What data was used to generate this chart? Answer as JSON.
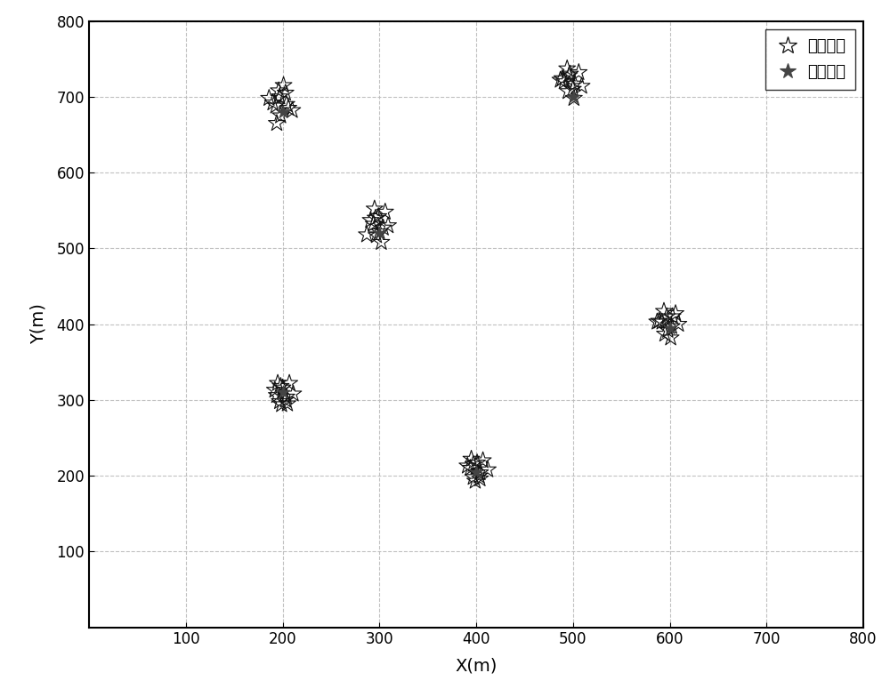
{
  "title": "",
  "xlabel": "X(m)",
  "ylabel": "Y(m)",
  "xlim": [
    0,
    800
  ],
  "ylim": [
    0,
    800
  ],
  "xticks": [
    100,
    200,
    300,
    400,
    500,
    600,
    700,
    800
  ],
  "yticks": [
    100,
    200,
    300,
    400,
    500,
    600,
    700,
    800
  ],
  "true_positions": [
    [
      200,
      680
    ],
    [
      200,
      310
    ],
    [
      300,
      520
    ],
    [
      400,
      205
    ],
    [
      500,
      700
    ],
    [
      600,
      395
    ]
  ],
  "estimated_clusters": [
    [
      [
        193,
        688
      ],
      [
        197,
        700
      ],
      [
        203,
        705
      ],
      [
        198,
        675
      ],
      [
        190,
        692
      ],
      [
        206,
        685
      ],
      [
        201,
        715
      ],
      [
        194,
        665
      ],
      [
        210,
        682
      ],
      [
        186,
        698
      ],
      [
        204,
        690
      ],
      [
        196,
        708
      ]
    ],
    [
      [
        194,
        306
      ],
      [
        200,
        316
      ],
      [
        197,
        298
      ],
      [
        204,
        304
      ],
      [
        192,
        313
      ],
      [
        207,
        322
      ],
      [
        199,
        294
      ],
      [
        195,
        322
      ],
      [
        203,
        300
      ],
      [
        211,
        308
      ],
      [
        198,
        318
      ],
      [
        205,
        295
      ]
    ],
    [
      [
        294,
        532
      ],
      [
        299,
        542
      ],
      [
        304,
        527
      ],
      [
        297,
        517
      ],
      [
        291,
        537
      ],
      [
        306,
        548
      ],
      [
        302,
        508
      ],
      [
        295,
        552
      ],
      [
        309,
        530
      ],
      [
        287,
        518
      ],
      [
        300,
        522
      ],
      [
        296,
        540
      ]
    ],
    [
      [
        394,
        210
      ],
      [
        401,
        217
      ],
      [
        397,
        198
      ],
      [
        404,
        204
      ],
      [
        391,
        213
      ],
      [
        407,
        220
      ],
      [
        399,
        193
      ],
      [
        395,
        222
      ],
      [
        403,
        200
      ],
      [
        412,
        208
      ],
      [
        397,
        215
      ],
      [
        404,
        196
      ]
    ],
    [
      [
        491,
        720
      ],
      [
        497,
        730
      ],
      [
        502,
        717
      ],
      [
        495,
        707
      ],
      [
        489,
        724
      ],
      [
        506,
        732
      ],
      [
        501,
        698
      ],
      [
        494,
        737
      ],
      [
        509,
        714
      ],
      [
        487,
        722
      ],
      [
        500,
        710
      ],
      [
        496,
        728
      ]
    ],
    [
      [
        592,
        403
      ],
      [
        597,
        410
      ],
      [
        602,
        397
      ],
      [
        595,
        387
      ],
      [
        589,
        404
      ],
      [
        606,
        414
      ],
      [
        601,
        382
      ],
      [
        594,
        417
      ],
      [
        609,
        400
      ],
      [
        587,
        403
      ],
      [
        598,
        392
      ],
      [
        603,
        410
      ]
    ]
  ],
  "estimated_color": "#111111",
  "true_color": "#444444",
  "background_color": "#ffffff",
  "grid_color": "#bbbbbb",
  "legend_estimated": "估计位置",
  "legend_true": "真实位置",
  "marker_size_estimated": 200,
  "marker_size_true": 120,
  "figsize": [
    10.0,
    7.84
  ],
  "dpi": 100
}
